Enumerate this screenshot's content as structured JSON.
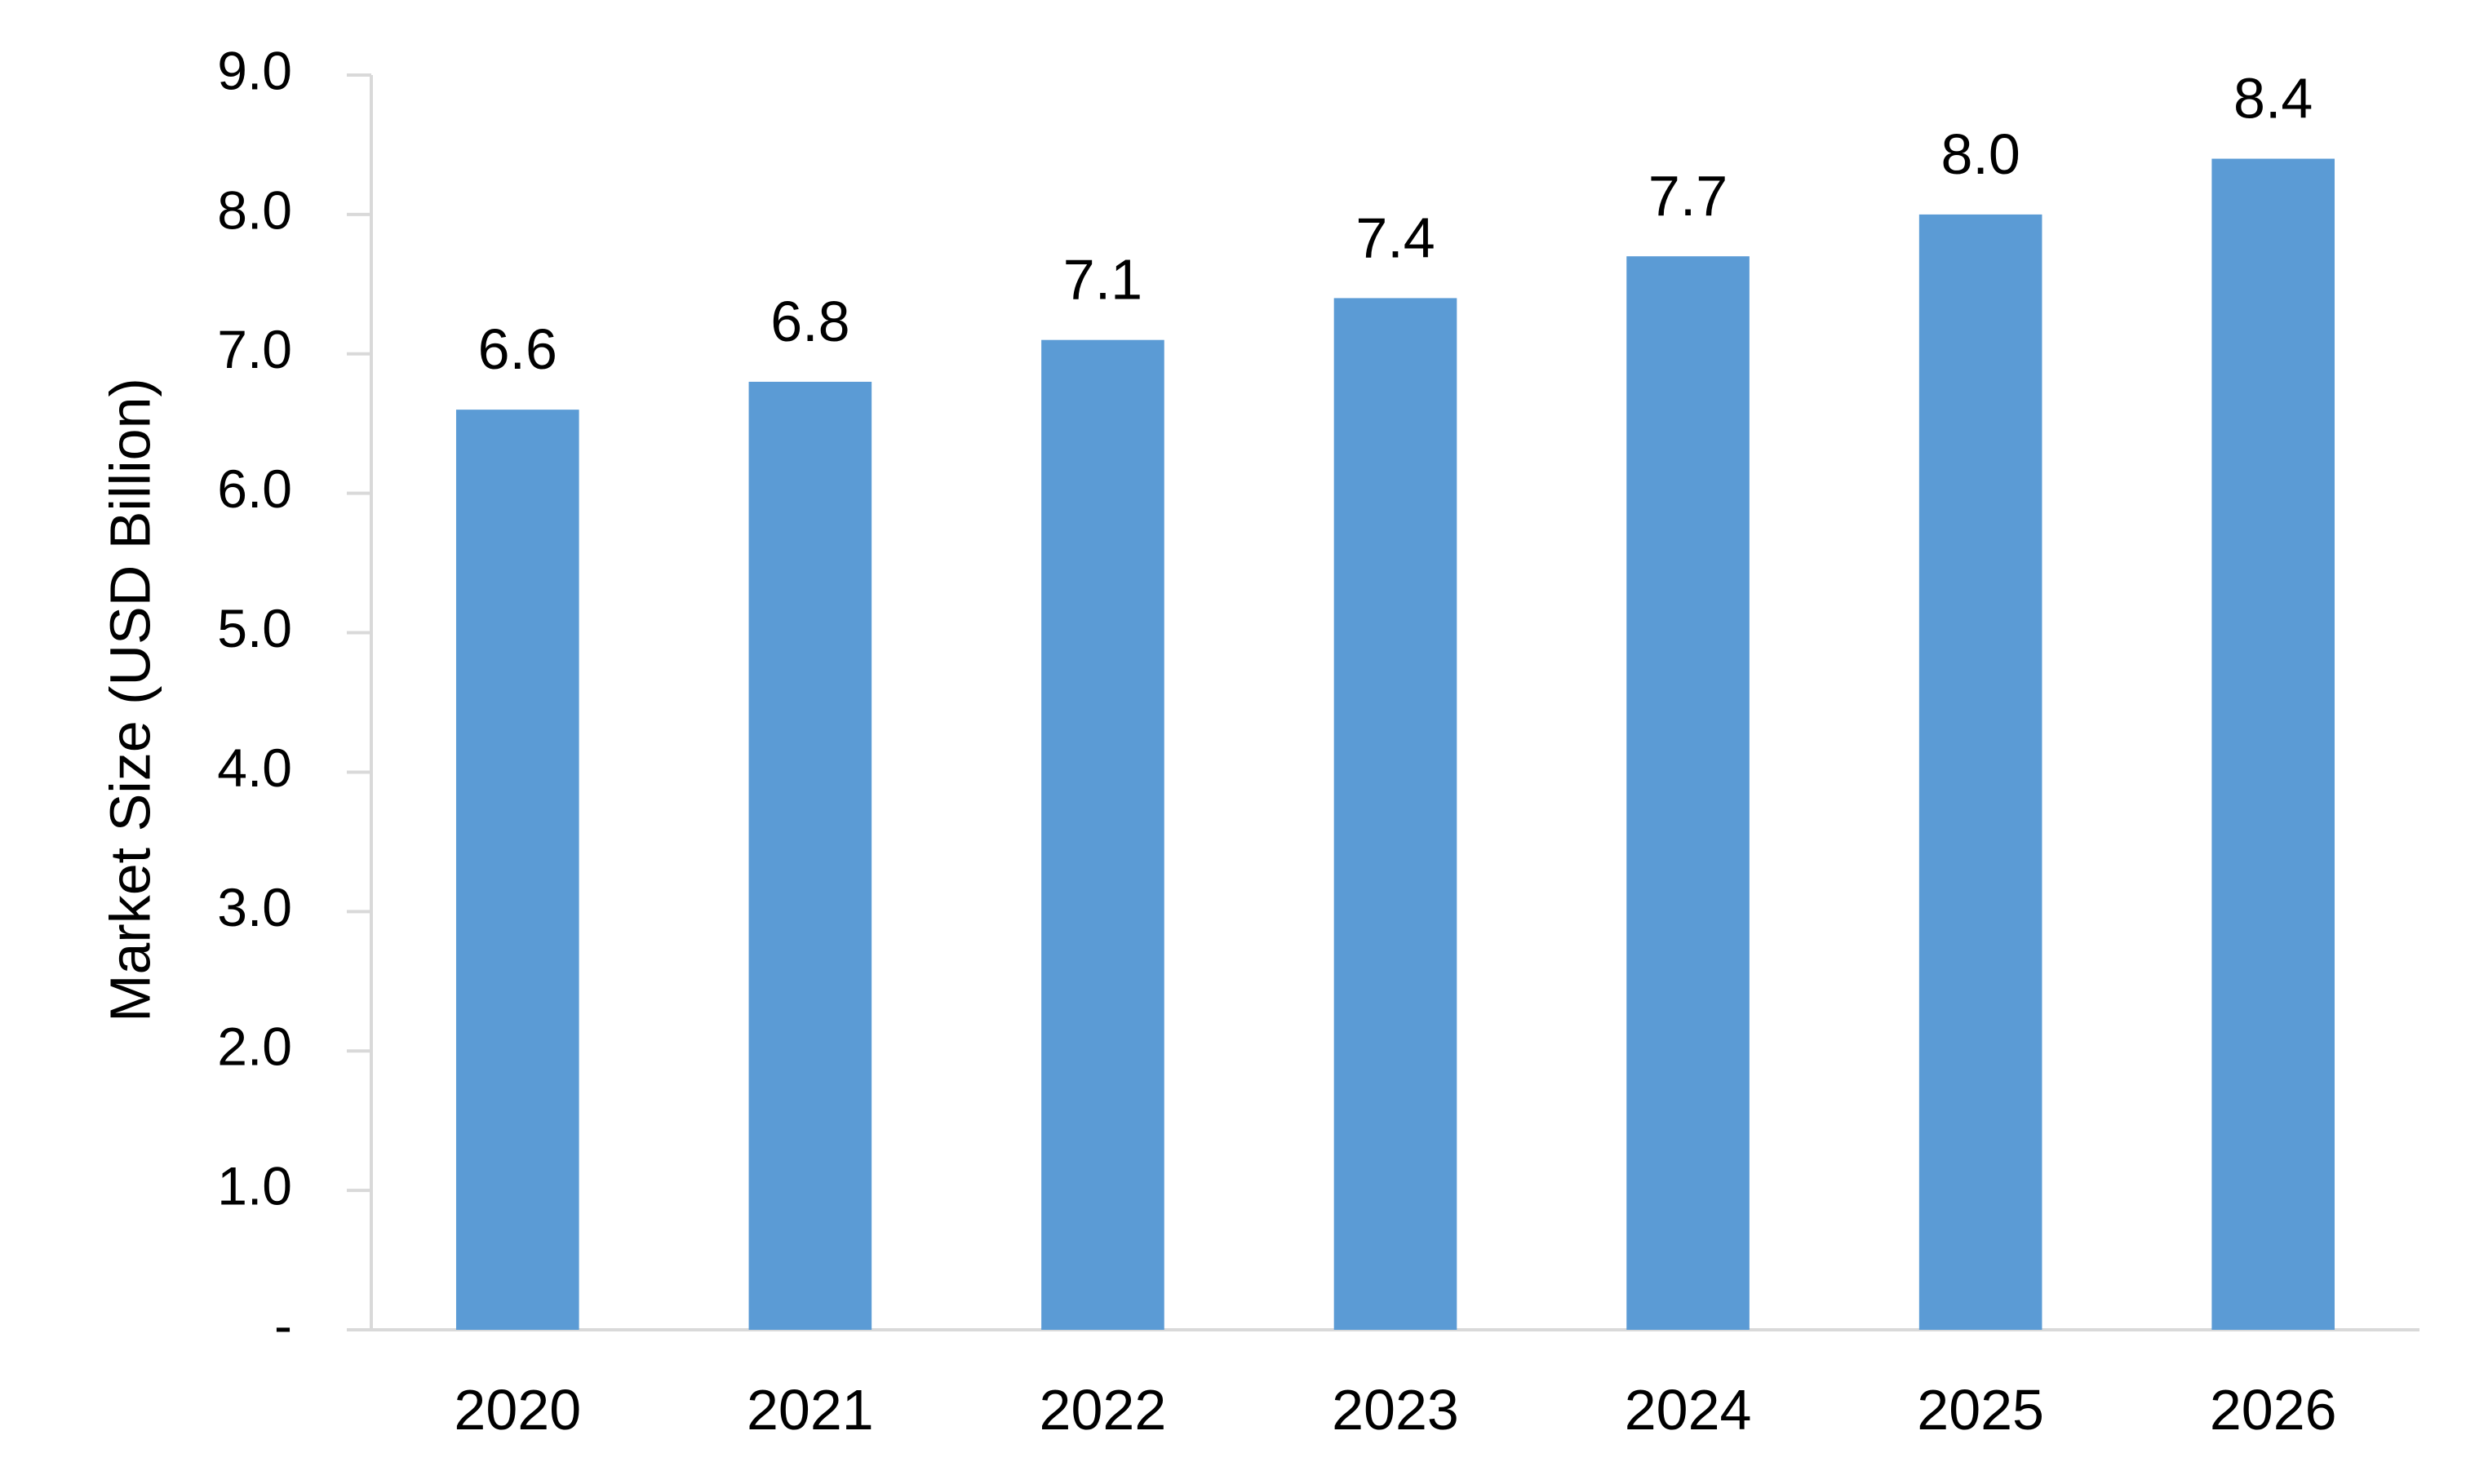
{
  "chart_data": {
    "type": "bar",
    "categories": [
      "2020",
      "2021",
      "2022",
      "2023",
      "2024",
      "2025",
      "2026"
    ],
    "values": [
      6.6,
      6.8,
      7.1,
      7.4,
      7.7,
      8.0,
      8.4
    ],
    "data_labels": [
      "6.6",
      "6.8",
      "7.1",
      "7.4",
      "7.7",
      "8.0",
      "8.4"
    ],
    "title": "",
    "xlabel": "",
    "ylabel": "Market Size (USD Billion)",
    "ylim": [
      0,
      9
    ],
    "yticks": [
      0,
      1,
      2,
      3,
      4,
      5,
      6,
      7,
      8,
      9
    ],
    "ytick_labels": [
      "-",
      "1.0",
      "2.0",
      "3.0",
      "4.0",
      "5.0",
      "6.0",
      "7.0",
      "8.0",
      "9.0"
    ],
    "grid": false,
    "legend": "none",
    "bar_color": "#5b9bd5",
    "axis_color": "#d9d9d9"
  }
}
